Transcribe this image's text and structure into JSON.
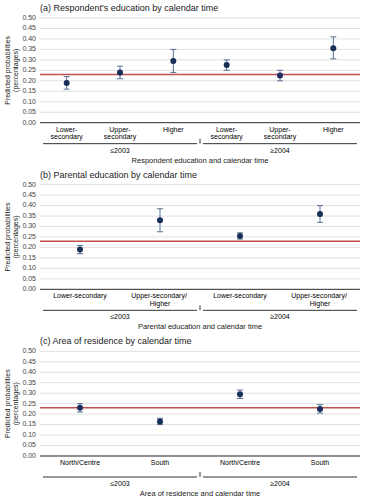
{
  "chart_data": [
    {
      "type": "dot",
      "title": "(a) Respondent's education by calendar time",
      "x_label": "Respondent education and calendar time",
      "y_label": "Predicted probabilities\n(percentages)",
      "categories": [
        "Lower-secondary",
        "Upper-secondary",
        "Higher",
        "Lower-secondary",
        "Upper-secondary",
        "Higher"
      ],
      "groups": [
        "≤2003",
        "≥2004"
      ],
      "series": [
        {
          "color": "#1a2e5a",
          "values": [
            0.19,
            0.24,
            0.295,
            0.275,
            0.225,
            0.355
          ],
          "error_bars": {
            "color": "#5a7090",
            "low": [
              0.03,
              0.03,
              0.055,
              0.025,
              0.025,
              0.05
            ],
            "high": [
              0.03,
              0.03,
              0.055,
              0.025,
              0.025,
              0.055
            ]
          }
        }
      ],
      "reference_line": {
        "value": 0.23,
        "color": "#c0504d"
      },
      "ylim": [
        0.0,
        0.5
      ],
      "yticks": [
        {
          "value": 0.0,
          "label": "0.00"
        },
        0.05,
        {
          "value": 0.1,
          "label": "0.10"
        },
        0.15,
        {
          "value": 0.2,
          "label": "0.20"
        },
        0.25,
        {
          "value": 0.3,
          "label": "0.30"
        },
        0.35,
        {
          "value": 0.4,
          "label": "0.40"
        },
        0.45,
        {
          "value": 0.5,
          "label": "0.50"
        }
      ],
      "grid": true
    },
    {
      "type": "dot",
      "title": "(b) Parental education by calendar time",
      "x_label": "Parental education and calendar time",
      "y_label": "Predicted probabilities\n(percentages)",
      "categories": [
        "Lower-secondary",
        "Upper-secondary/ Higher",
        "Lower-secondary",
        "Upper-secondary/ Higher"
      ],
      "groups": [
        "≤2003",
        "≥2004"
      ],
      "series": [
        {
          "color": "#1a2e5a",
          "values": [
            0.19,
            0.33,
            0.255,
            0.36
          ],
          "error_bars": {
            "color": "#5a7090",
            "low": [
              0.02,
              0.055,
              0.015,
              0.04
            ],
            "high": [
              0.02,
              0.055,
              0.015,
              0.04
            ]
          }
        }
      ],
      "reference_line": {
        "value": 0.23,
        "color": "#c0504d"
      },
      "ylim": [
        0.0,
        0.5
      ],
      "yticks": [
        {
          "value": 0.0,
          "label": "0.00"
        },
        0.05,
        {
          "value": 0.1,
          "label": "0.10"
        },
        0.15,
        {
          "value": 0.2,
          "label": "0.20"
        },
        0.25,
        {
          "value": 0.3,
          "label": "0.30"
        },
        0.35,
        {
          "value": 0.4,
          "label": "0.40"
        },
        0.45,
        {
          "value": 0.5,
          "label": "0.50"
        }
      ],
      "grid": true
    },
    {
      "type": "dot",
      "title": "(c) Area of residence by calendar time",
      "x_label": "Area of residence and calendar time",
      "y_label": "Predicted probabilities\n(percentages)",
      "categories": [
        "North/Centre",
        "South",
        "North/Centre",
        "South"
      ],
      "groups": [
        "≤2003",
        "≥2004"
      ],
      "series": [
        {
          "color": "#1a2e5a",
          "values": [
            0.23,
            0.165,
            0.295,
            0.225
          ],
          "error_bars": {
            "color": "#5a7090",
            "low": [
              0.02,
              0.015,
              0.02,
              0.02
            ],
            "high": [
              0.02,
              0.015,
              0.02,
              0.02
            ]
          }
        }
      ],
      "reference_line": {
        "value": 0.23,
        "color": "#c0504d"
      },
      "ylim": [
        0.0,
        0.5
      ],
      "yticks": [
        {
          "value": 0.0,
          "label": "0.00"
        },
        0.05,
        {
          "value": 0.1,
          "label": "0.10"
        },
        0.15,
        {
          "value": 0.2,
          "label": "0.20"
        },
        0.25,
        {
          "value": 0.3,
          "label": "0.30"
        },
        0.35,
        {
          "value": 0.4,
          "label": "0.40"
        },
        0.45,
        {
          "value": 0.5,
          "label": "0.50"
        }
      ],
      "grid": true
    }
  ]
}
